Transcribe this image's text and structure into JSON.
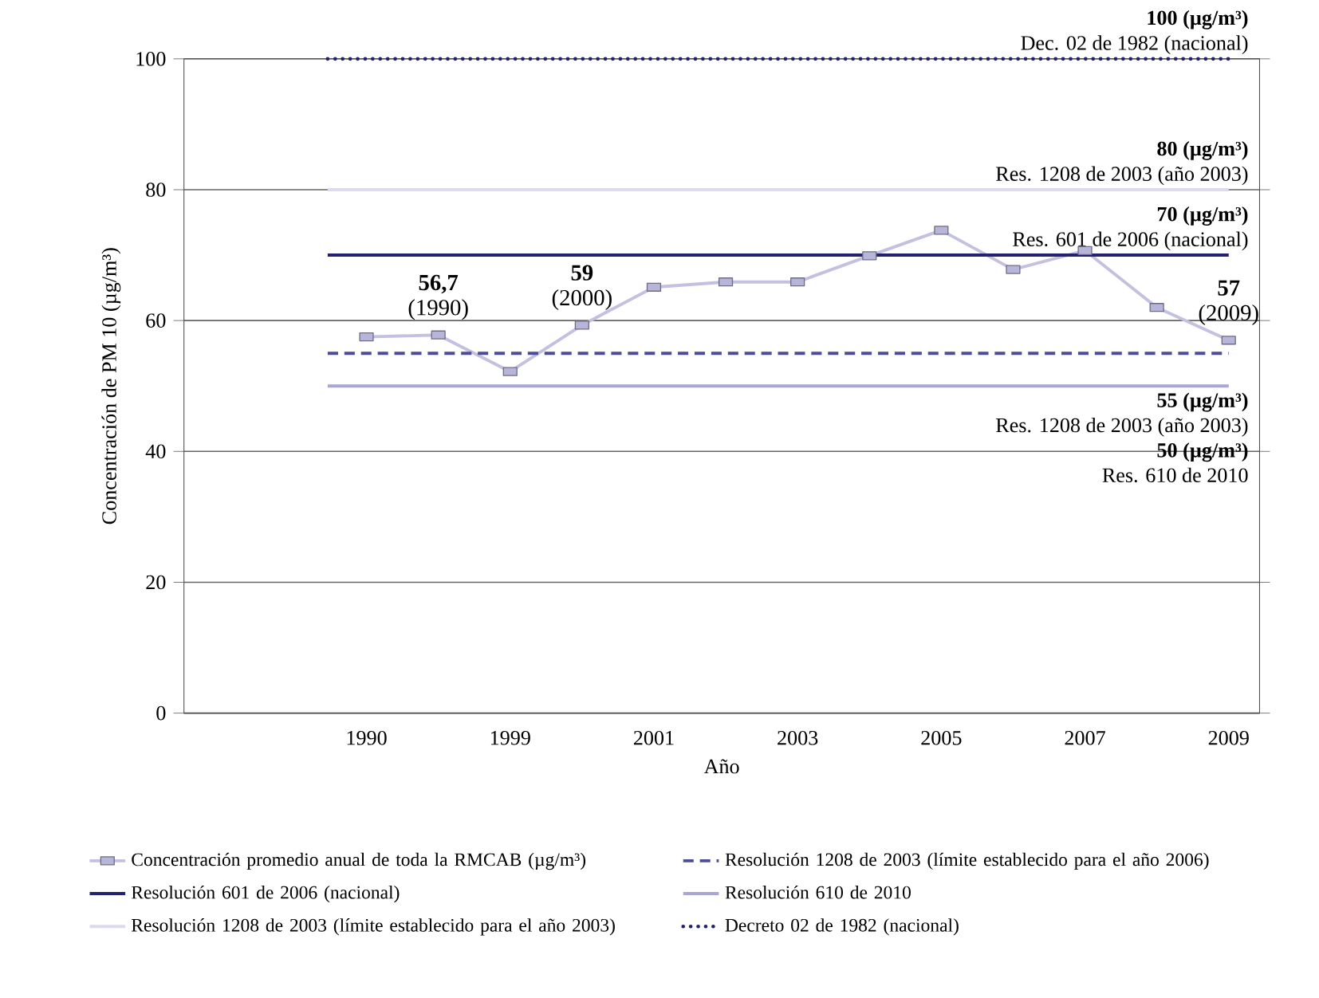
{
  "chart_data": {
    "type": "line",
    "xlabel": "Año",
    "ylabel": "Concentración de PM 10 (µg/m³)",
    "categories": [
      "1990",
      null,
      "1999",
      null,
      "2001",
      null,
      "2003",
      null,
      "2005",
      null,
      "2007",
      null,
      "2009"
    ],
    "series": [
      {
        "name": "Concentración promedio anual de toda la RMCAB (µg/m³)",
        "color": "#b8b5da",
        "values": [
          57.5,
          57.8,
          52.2,
          59.3,
          65.1,
          65.9,
          65.9,
          69.9,
          73.8,
          67.8,
          70.7,
          62.0,
          57.0
        ],
        "value_labels": [
          null,
          "**56,7** (1990)",
          null,
          "**59** (2000)",
          null,
          null,
          null,
          null,
          null,
          null,
          null,
          null,
          "**57** (2009)"
        ]
      }
    ],
    "ref_lines": [
      {
        "axis": "y",
        "value": 55,
        "label": "Resolución 1208 de 2003 (límite establecido para el año 2006)",
        "color": "#4f4c96",
        "line_style": "dashed"
      },
      {
        "axis": "y",
        "value": 70,
        "label": "Resolución 601 de 2006 (nacional)",
        "color": "#22226e",
        "line_style": "solid"
      },
      {
        "axis": "y",
        "value": 50,
        "label": "Resolución 610 de 2010",
        "color": "#a9a6d4",
        "line_style": "solid"
      },
      {
        "axis": "y",
        "value": 80,
        "label": "Resolución 1208 de 2003 (límite establecido para el año 2003)",
        "color": "#dcdaec",
        "line_style": "solid"
      },
      {
        "axis": "y",
        "value": 100,
        "label": "Decreto 02 de 1982 (nacional)",
        "color": "#22226e",
        "line_style": "dotted"
      }
    ],
    "annotations": [
      {
        "text": "100 (µg/m³)",
        "y": 100
      },
      {
        "text": "Dec. 02 de 1982 (nacional)",
        "y": 100
      },
      {
        "text": "80 (µg/m³)",
        "y": 80
      },
      {
        "text": "Res. 1208 de 2003 (año 2003)",
        "y": 80
      },
      {
        "text": "70 (µg/m³)",
        "y": 70
      },
      {
        "text": "Res. 601 de 2006 (nacional)",
        "y": 70
      },
      "55 (µg/m³)",
      "Res. 1208 de 2003 (año 2003)",
      "50 (µg/m³)",
      "Res. 610 de 2010"
    ],
    "ylim": [
      0,
      100
    ],
    "yticks": [
      0,
      20,
      40,
      60,
      80,
      100
    ],
    "grid": "y",
    "legend": "bottom",
    "marker": "square",
    "line_style": "solid"
  }
}
